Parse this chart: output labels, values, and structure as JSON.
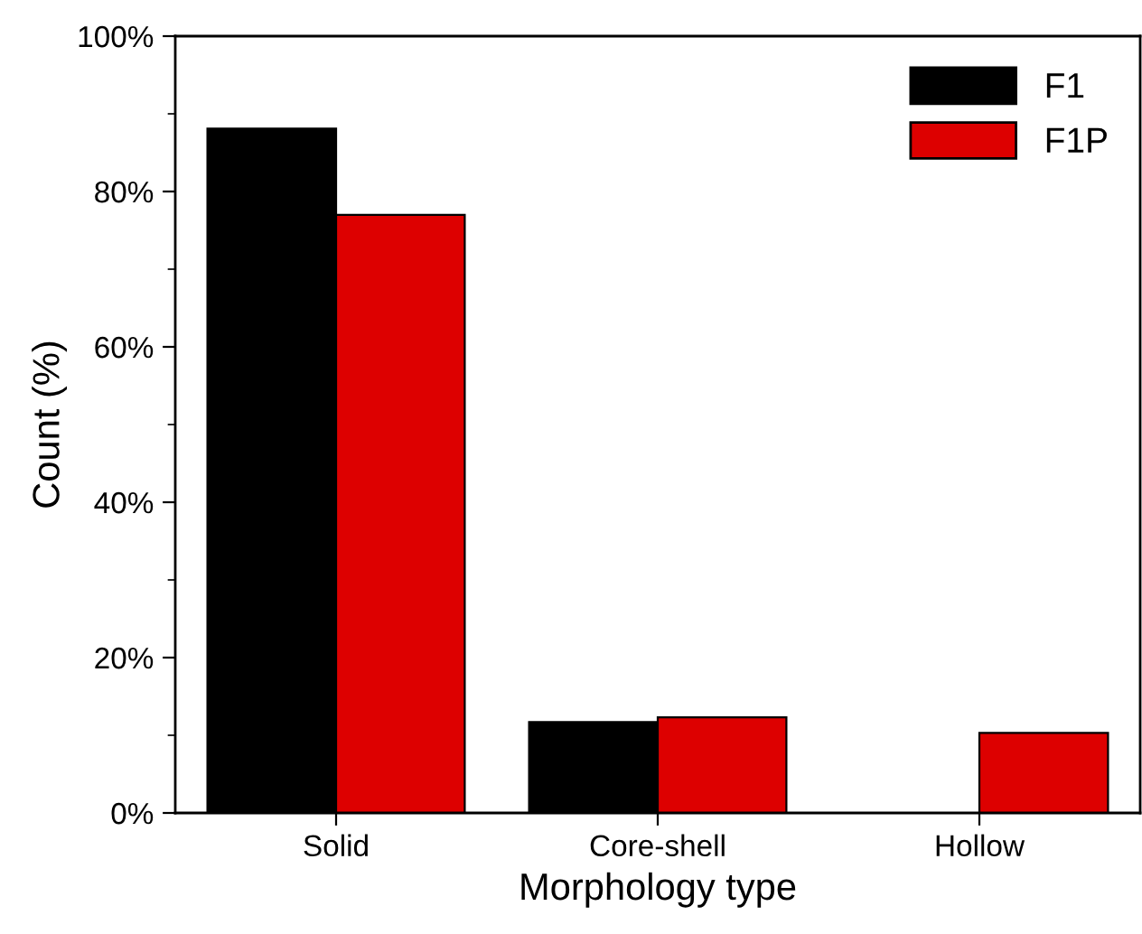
{
  "chart_data": {
    "type": "bar",
    "xlabel": "Morphology type",
    "ylabel": "Count (%)",
    "categories": [
      "Solid",
      "Core-shell",
      "Hollow"
    ],
    "series": [
      {
        "name": "F1",
        "color": "#000000",
        "values": [
          88.1,
          11.7,
          0
        ]
      },
      {
        "name": "F1P",
        "color": "#dd0000",
        "values": [
          77.0,
          12.3,
          10.3
        ]
      }
    ],
    "ylim": [
      0,
      100
    ],
    "yticks": [
      {
        "value": 0,
        "label": "0%"
      },
      {
        "value": 20,
        "label": "20%"
      },
      {
        "value": 40,
        "label": "40%"
      },
      {
        "value": 60,
        "label": "60%"
      },
      {
        "value": 80,
        "label": "80%"
      },
      {
        "value": 100,
        "label": "100%"
      }
    ],
    "grid": false,
    "legend": "top right"
  }
}
